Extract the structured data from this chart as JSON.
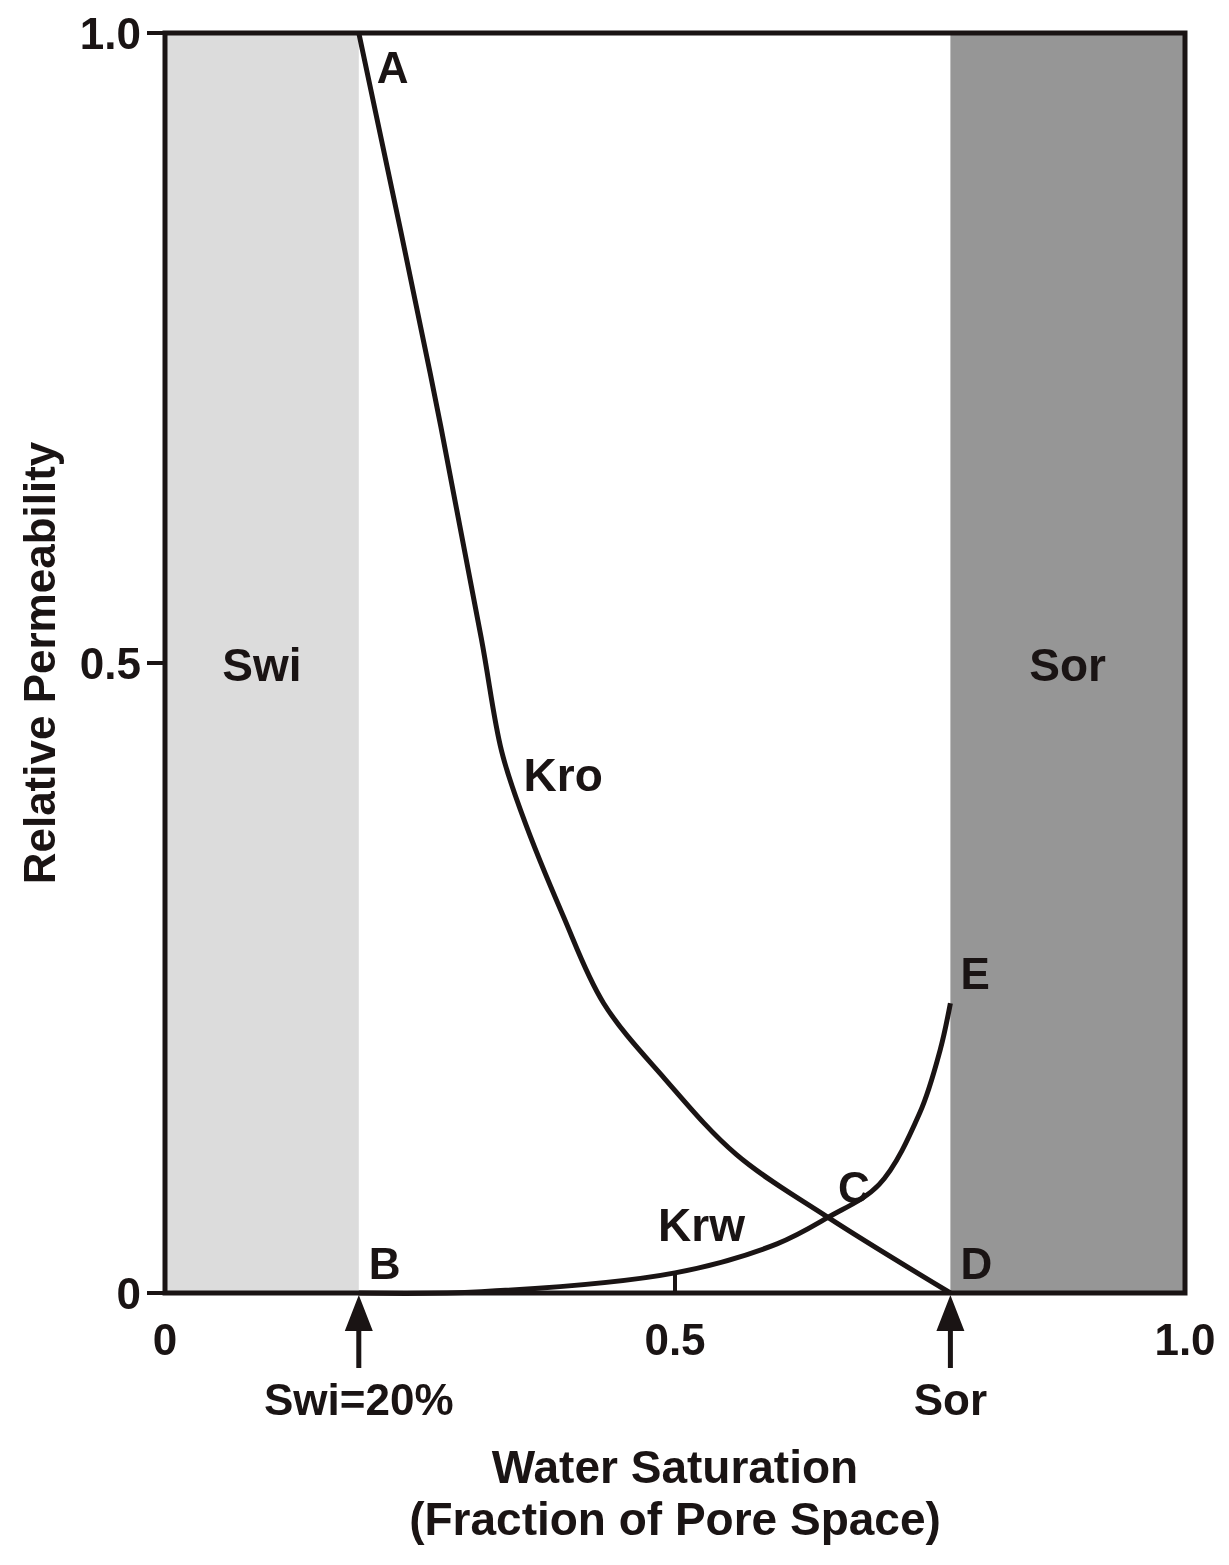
{
  "chart_data": {
    "type": "line",
    "xlabel": "Water Saturation\n(Fraction of Pore Space)",
    "ylabel": "Relative Permeability",
    "xlim": [
      0,
      1
    ],
    "ylim": [
      0,
      1
    ],
    "xticks": [
      0,
      0.5,
      {
        "value": 1,
        "label": "1.0"
      }
    ],
    "yticks": [
      0,
      0.5,
      {
        "value": 1,
        "label": "1.0"
      }
    ],
    "grid": false,
    "marker": "none",
    "line_style": "solid",
    "series": [
      {
        "name": "Kro",
        "color": "#1a1414",
        "x": [
          0.19,
          0.26,
          0.31,
          0.33,
          0.35,
          0.39,
          0.43,
          0.49,
          0.56,
          0.65,
          0.77
        ],
        "values": [
          1.0,
          0.73,
          0.52,
          0.43,
          0.38,
          0.3,
          0.23,
          0.17,
          0.11,
          0.06,
          0
        ]
      },
      {
        "name": "Krw",
        "color": "#1a1414",
        "x": [
          0.19,
          0.31,
          0.5,
          0.6,
          0.65,
          0.7,
          0.74,
          0.76,
          0.77
        ],
        "values": [
          0,
          0.001,
          0.016,
          0.039,
          0.06,
          0.086,
          0.143,
          0.193,
          0.23
        ]
      }
    ],
    "bands": [
      {
        "axis": "x",
        "from": 0,
        "to": 0.19,
        "label": "Swi",
        "color": "#dcdcdc"
      },
      {
        "axis": "x",
        "from": 0.77,
        "to": 1,
        "label": "Sor",
        "color": "#969696"
      }
    ],
    "annotations": [
      {
        "text": "A",
        "x": 0.19,
        "y": 1
      },
      {
        "text": "B",
        "x": 0.19,
        "y": 0
      },
      {
        "text": "C",
        "x": 0.65,
        "y": 0.06
      },
      {
        "text": "D",
        "x": 0.77,
        "y": 0
      },
      {
        "text": "E",
        "x": 0.77,
        "y": 0.23
      },
      "Swi=20%",
      "Sor"
    ]
  }
}
